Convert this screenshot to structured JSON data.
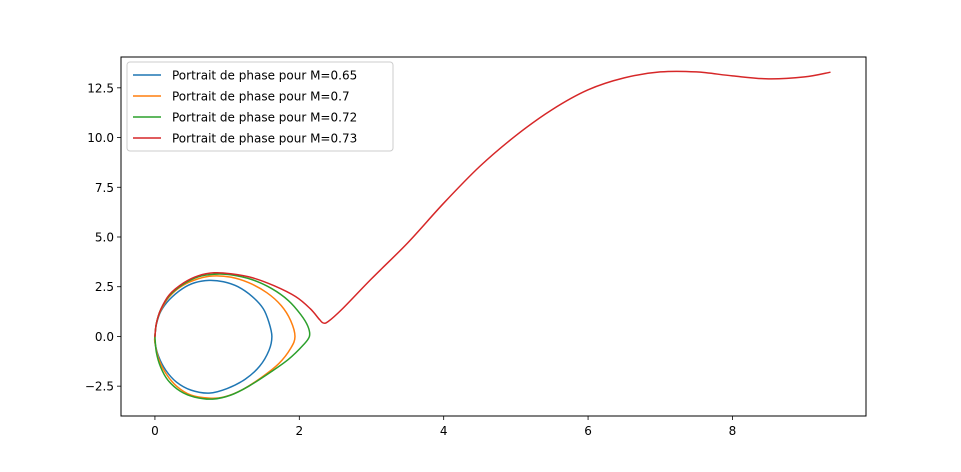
{
  "chart_data": {
    "type": "line",
    "title": "",
    "xlabel": "",
    "ylabel": "",
    "xlim": [
      -0.47,
      9.85
    ],
    "ylim": [
      -4.0,
      14.05
    ],
    "xticks": [
      0,
      2,
      4,
      6,
      8
    ],
    "yticks": [
      -2.5,
      0.0,
      2.5,
      5.0,
      7.5,
      10.0,
      12.5
    ],
    "xtick_labels": [
      "0",
      "2",
      "4",
      "6",
      "8"
    ],
    "ytick_labels": [
      "−2.5",
      "0.0",
      "2.5",
      "5.0",
      "7.5",
      "10.0",
      "12.5"
    ],
    "grid": false,
    "legend_position": "top-left",
    "series": [
      {
        "name": "Portrait de phase pour M=0.65",
        "color": "#1f77b4",
        "points": [
          [
            0.0,
            0.0
          ],
          [
            0.02,
            0.6
          ],
          [
            0.08,
            1.25
          ],
          [
            0.2,
            1.85
          ],
          [
            0.38,
            2.4
          ],
          [
            0.55,
            2.7
          ],
          [
            0.75,
            2.82
          ],
          [
            0.95,
            2.75
          ],
          [
            1.15,
            2.5
          ],
          [
            1.35,
            2.0
          ],
          [
            1.5,
            1.4
          ],
          [
            1.58,
            0.7
          ],
          [
            1.62,
            0.0
          ],
          [
            1.58,
            -0.7
          ],
          [
            1.45,
            -1.5
          ],
          [
            1.25,
            -2.15
          ],
          [
            1.0,
            -2.62
          ],
          [
            0.75,
            -2.85
          ],
          [
            0.5,
            -2.7
          ],
          [
            0.3,
            -2.3
          ],
          [
            0.15,
            -1.7
          ],
          [
            0.05,
            -1.0
          ],
          [
            0.0,
            -0.3
          ],
          [
            0.0,
            0.0
          ]
        ]
      },
      {
        "name": "Portrait de phase pour M=0.7",
        "color": "#ff7f0e",
        "points": [
          [
            0.0,
            0.0
          ],
          [
            0.02,
            0.65
          ],
          [
            0.08,
            1.3
          ],
          [
            0.2,
            2.0
          ],
          [
            0.38,
            2.55
          ],
          [
            0.6,
            2.9
          ],
          [
            0.8,
            3.04
          ],
          [
            1.05,
            2.98
          ],
          [
            1.3,
            2.7
          ],
          [
            1.55,
            2.2
          ],
          [
            1.75,
            1.55
          ],
          [
            1.88,
            0.8
          ],
          [
            1.94,
            0.0
          ],
          [
            1.88,
            -0.6
          ],
          [
            1.72,
            -1.35
          ],
          [
            1.48,
            -2.05
          ],
          [
            1.2,
            -2.7
          ],
          [
            0.95,
            -3.05
          ],
          [
            0.75,
            -3.1
          ],
          [
            0.5,
            -2.95
          ],
          [
            0.3,
            -2.5
          ],
          [
            0.15,
            -1.85
          ],
          [
            0.05,
            -1.1
          ],
          [
            0.0,
            -0.3
          ],
          [
            0.0,
            0.0
          ]
        ]
      },
      {
        "name": "Portrait de phase pour M=0.72",
        "color": "#2ca02c",
        "points": [
          [
            0.0,
            0.0
          ],
          [
            0.02,
            0.65
          ],
          [
            0.08,
            1.35
          ],
          [
            0.2,
            2.05
          ],
          [
            0.38,
            2.6
          ],
          [
            0.6,
            3.0
          ],
          [
            0.82,
            3.13
          ],
          [
            1.05,
            3.1
          ],
          [
            1.35,
            2.85
          ],
          [
            1.62,
            2.4
          ],
          [
            1.85,
            1.8
          ],
          [
            2.02,
            1.1
          ],
          [
            2.12,
            0.5
          ],
          [
            2.14,
            0.0
          ],
          [
            2.05,
            -0.45
          ],
          [
            1.85,
            -1.15
          ],
          [
            1.6,
            -1.8
          ],
          [
            1.3,
            -2.5
          ],
          [
            1.05,
            -2.95
          ],
          [
            0.8,
            -3.15
          ],
          [
            0.55,
            -3.05
          ],
          [
            0.35,
            -2.75
          ],
          [
            0.18,
            -2.2
          ],
          [
            0.08,
            -1.55
          ],
          [
            0.02,
            -0.8
          ],
          [
            0.0,
            0.0
          ]
        ]
      },
      {
        "name": "Portrait de phase pour M=0.73",
        "color": "#d62728",
        "points": [
          [
            0.0,
            0.0
          ],
          [
            0.02,
            0.65
          ],
          [
            0.08,
            1.35
          ],
          [
            0.2,
            2.1
          ],
          [
            0.4,
            2.7
          ],
          [
            0.6,
            3.05
          ],
          [
            0.82,
            3.2
          ],
          [
            1.05,
            3.15
          ],
          [
            1.35,
            2.95
          ],
          [
            1.65,
            2.55
          ],
          [
            1.95,
            2.0
          ],
          [
            2.15,
            1.4
          ],
          [
            2.28,
            0.85
          ],
          [
            2.33,
            0.68
          ],
          [
            2.4,
            0.75
          ],
          [
            2.6,
            1.4
          ],
          [
            3.0,
            2.9
          ],
          [
            3.5,
            4.7
          ],
          [
            4.0,
            6.7
          ],
          [
            4.5,
            8.55
          ],
          [
            5.0,
            10.1
          ],
          [
            5.5,
            11.4
          ],
          [
            6.0,
            12.4
          ],
          [
            6.5,
            13.0
          ],
          [
            7.0,
            13.3
          ],
          [
            7.5,
            13.3
          ],
          [
            8.0,
            13.1
          ],
          [
            8.5,
            12.95
          ],
          [
            9.0,
            13.05
          ],
          [
            9.35,
            13.28
          ]
        ]
      }
    ]
  }
}
